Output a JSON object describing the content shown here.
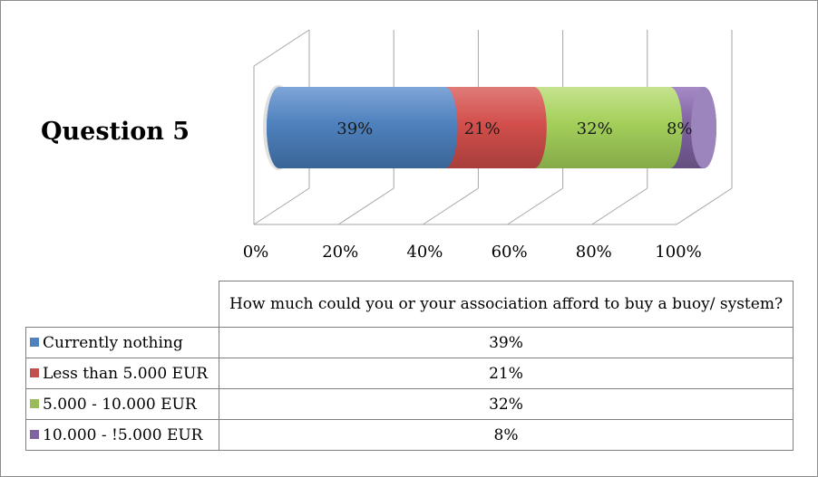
{
  "title": "Question 5",
  "chart_data": {
    "type": "bar",
    "orientation": "horizontal",
    "stacked": "100%",
    "question": "How much could you or your association afford to buy a buoy/ system?",
    "xlim": [
      0,
      100
    ],
    "xticks": [
      "0%",
      "20%",
      "40%",
      "60%",
      "80%",
      "100%"
    ],
    "grid": true,
    "series": [
      {
        "name": "Currently nothing",
        "value": 39,
        "label": "39%",
        "color": "#4f81bd"
      },
      {
        "name": "Less than 5.000 EUR",
        "value": 21,
        "label": "21%",
        "color": "#c0504d"
      },
      {
        "name": "5.000 - 10.000 EUR",
        "value": 32,
        "label": "32%",
        "color": "#9bbb59"
      },
      {
        "name": "10.000 - !5.000 EUR",
        "value": 8,
        "label": "8%",
        "color": "#8064a2"
      }
    ]
  }
}
